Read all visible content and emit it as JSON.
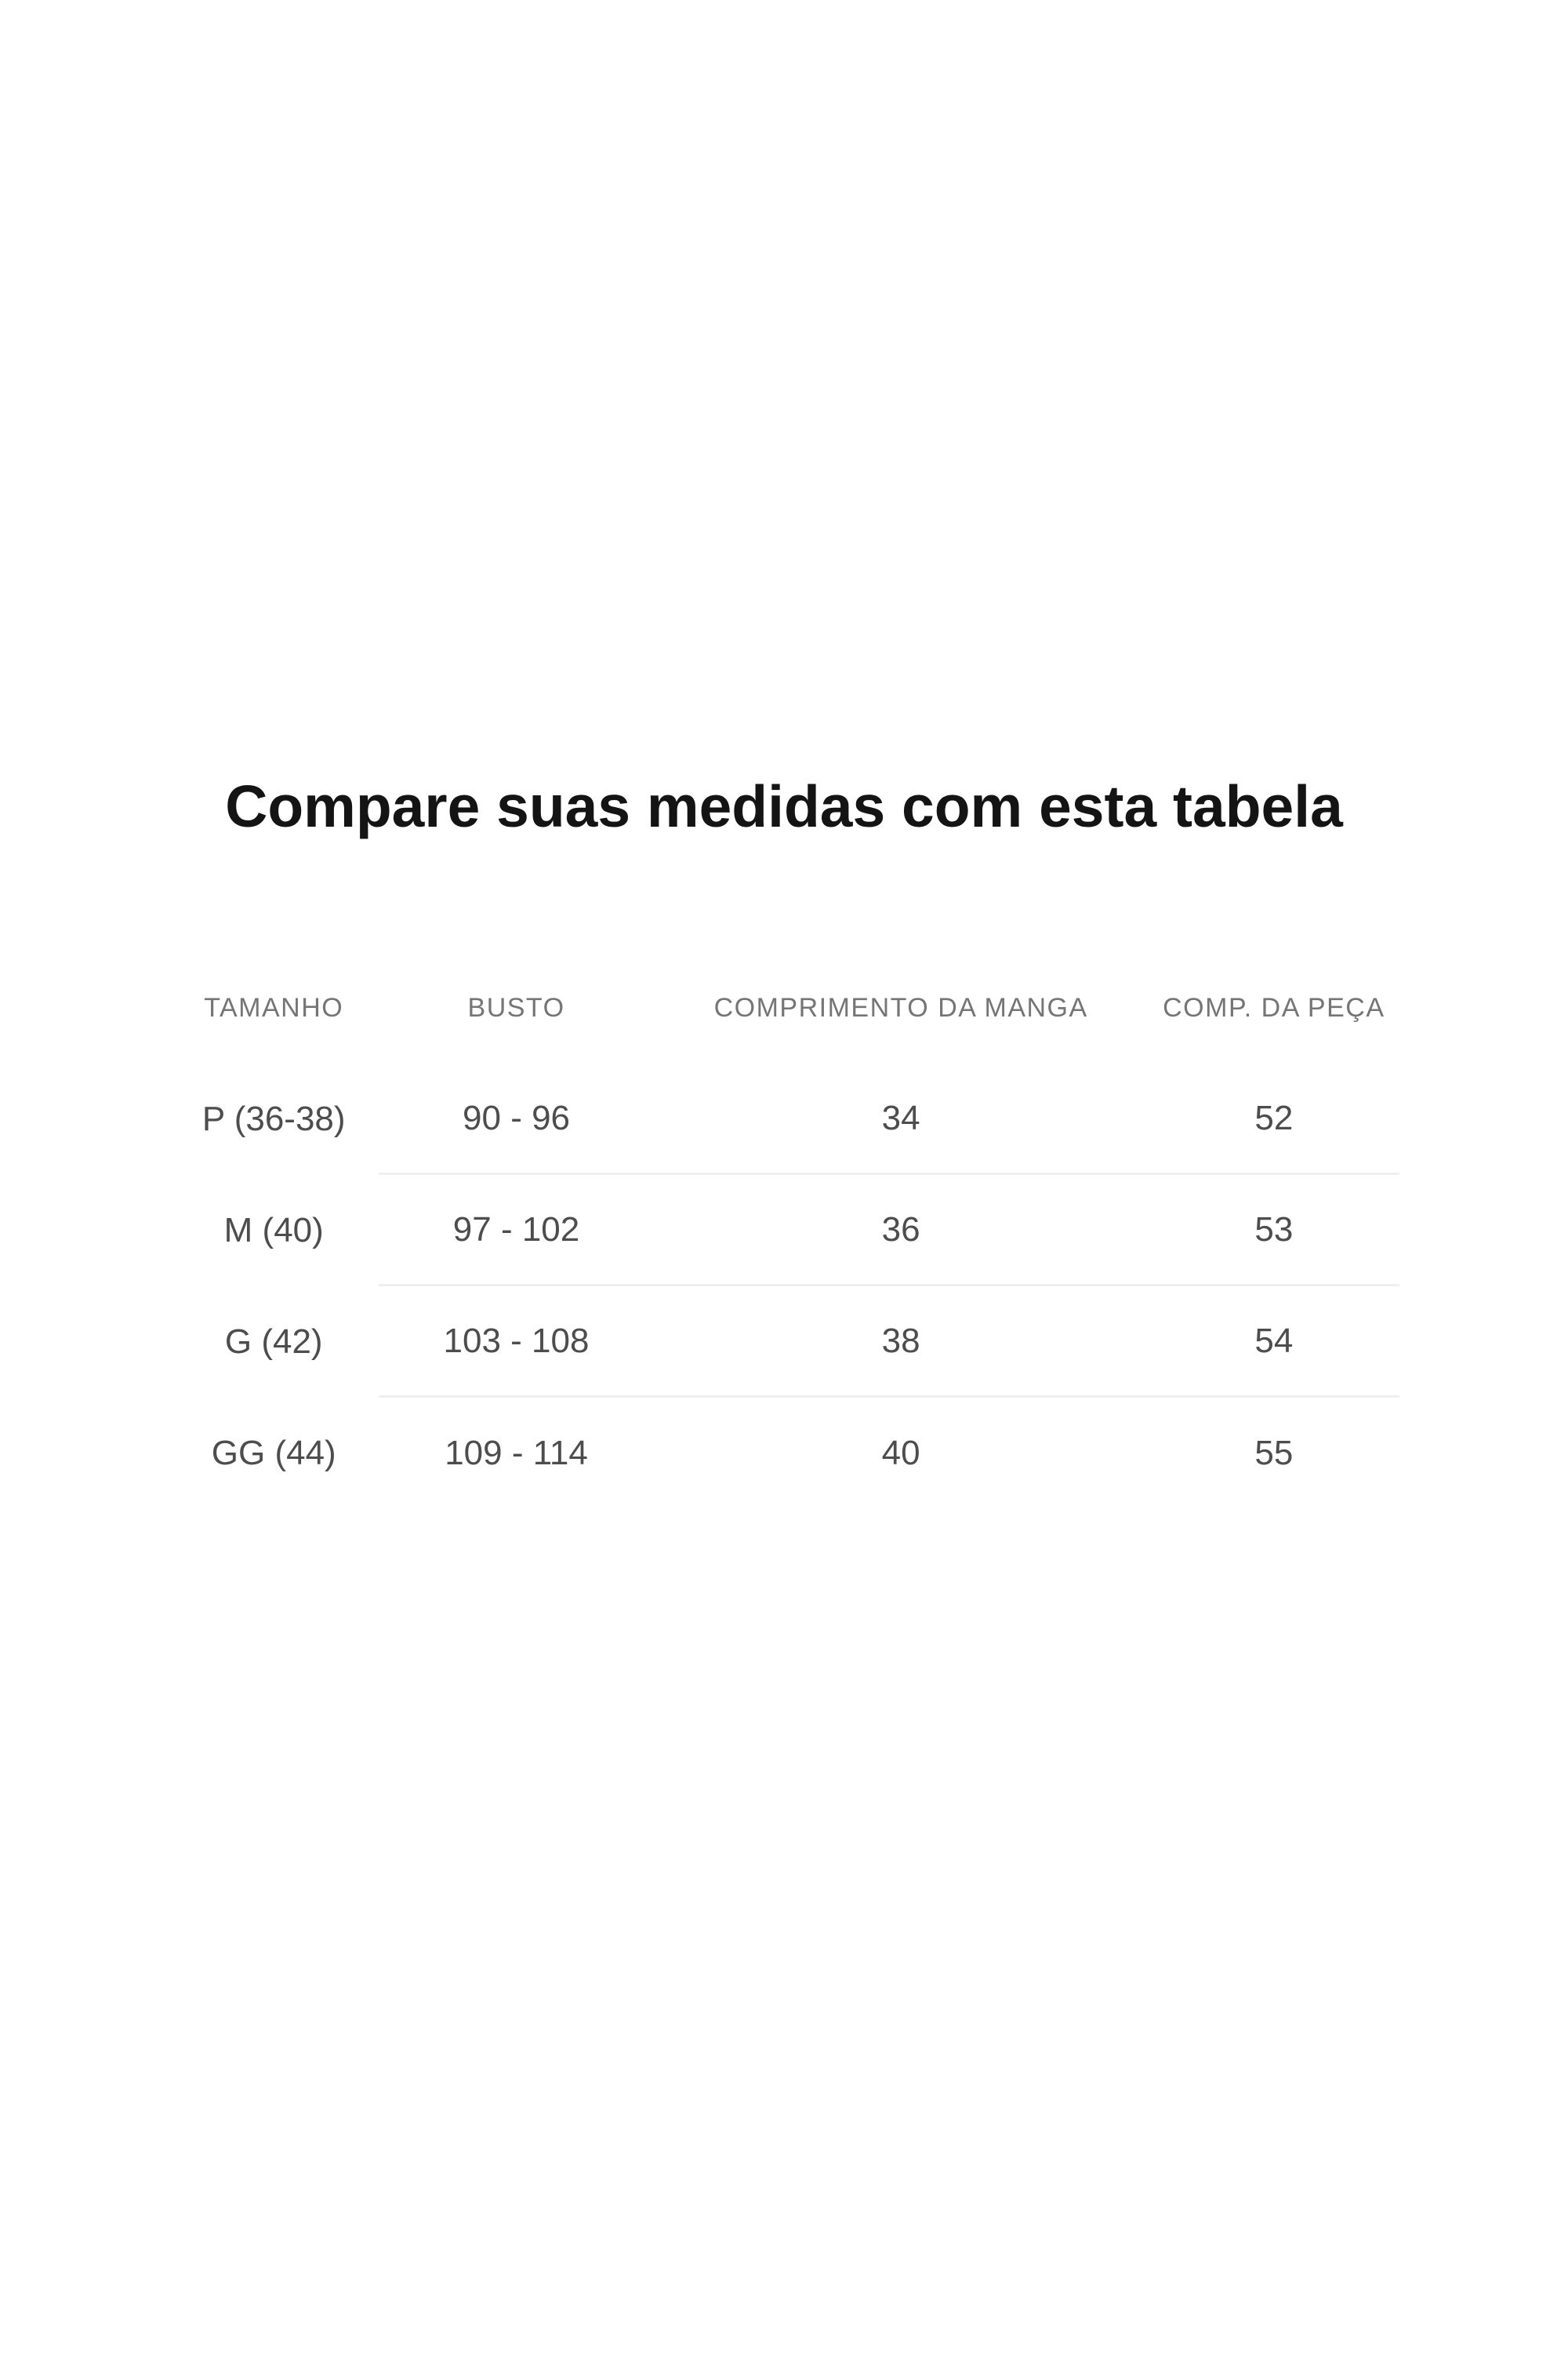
{
  "title": "Compare suas medidas com esta tabela",
  "table": {
    "headers": [
      "TAMANHO",
      "BUSTO",
      "COMPRIMENTO DA MANGA",
      "COMP. DA PEÇA"
    ],
    "rows": [
      {
        "size": "P (36-38)",
        "bust": "90 - 96",
        "sleeve": "34",
        "length": "52"
      },
      {
        "size": "M (40)",
        "bust": "97 - 102",
        "sleeve": "36",
        "length": "53"
      },
      {
        "size": "G (42)",
        "bust": "103 - 108",
        "sleeve": "38",
        "length": "54"
      },
      {
        "size": "GG (44)",
        "bust": "109 - 114",
        "sleeve": "40",
        "length": "55"
      }
    ]
  },
  "colors": {
    "background": "#ffffff",
    "title_text": "#141414",
    "header_text": "#757575",
    "cell_text": "#4d4d4d",
    "divider": "#efefef"
  }
}
